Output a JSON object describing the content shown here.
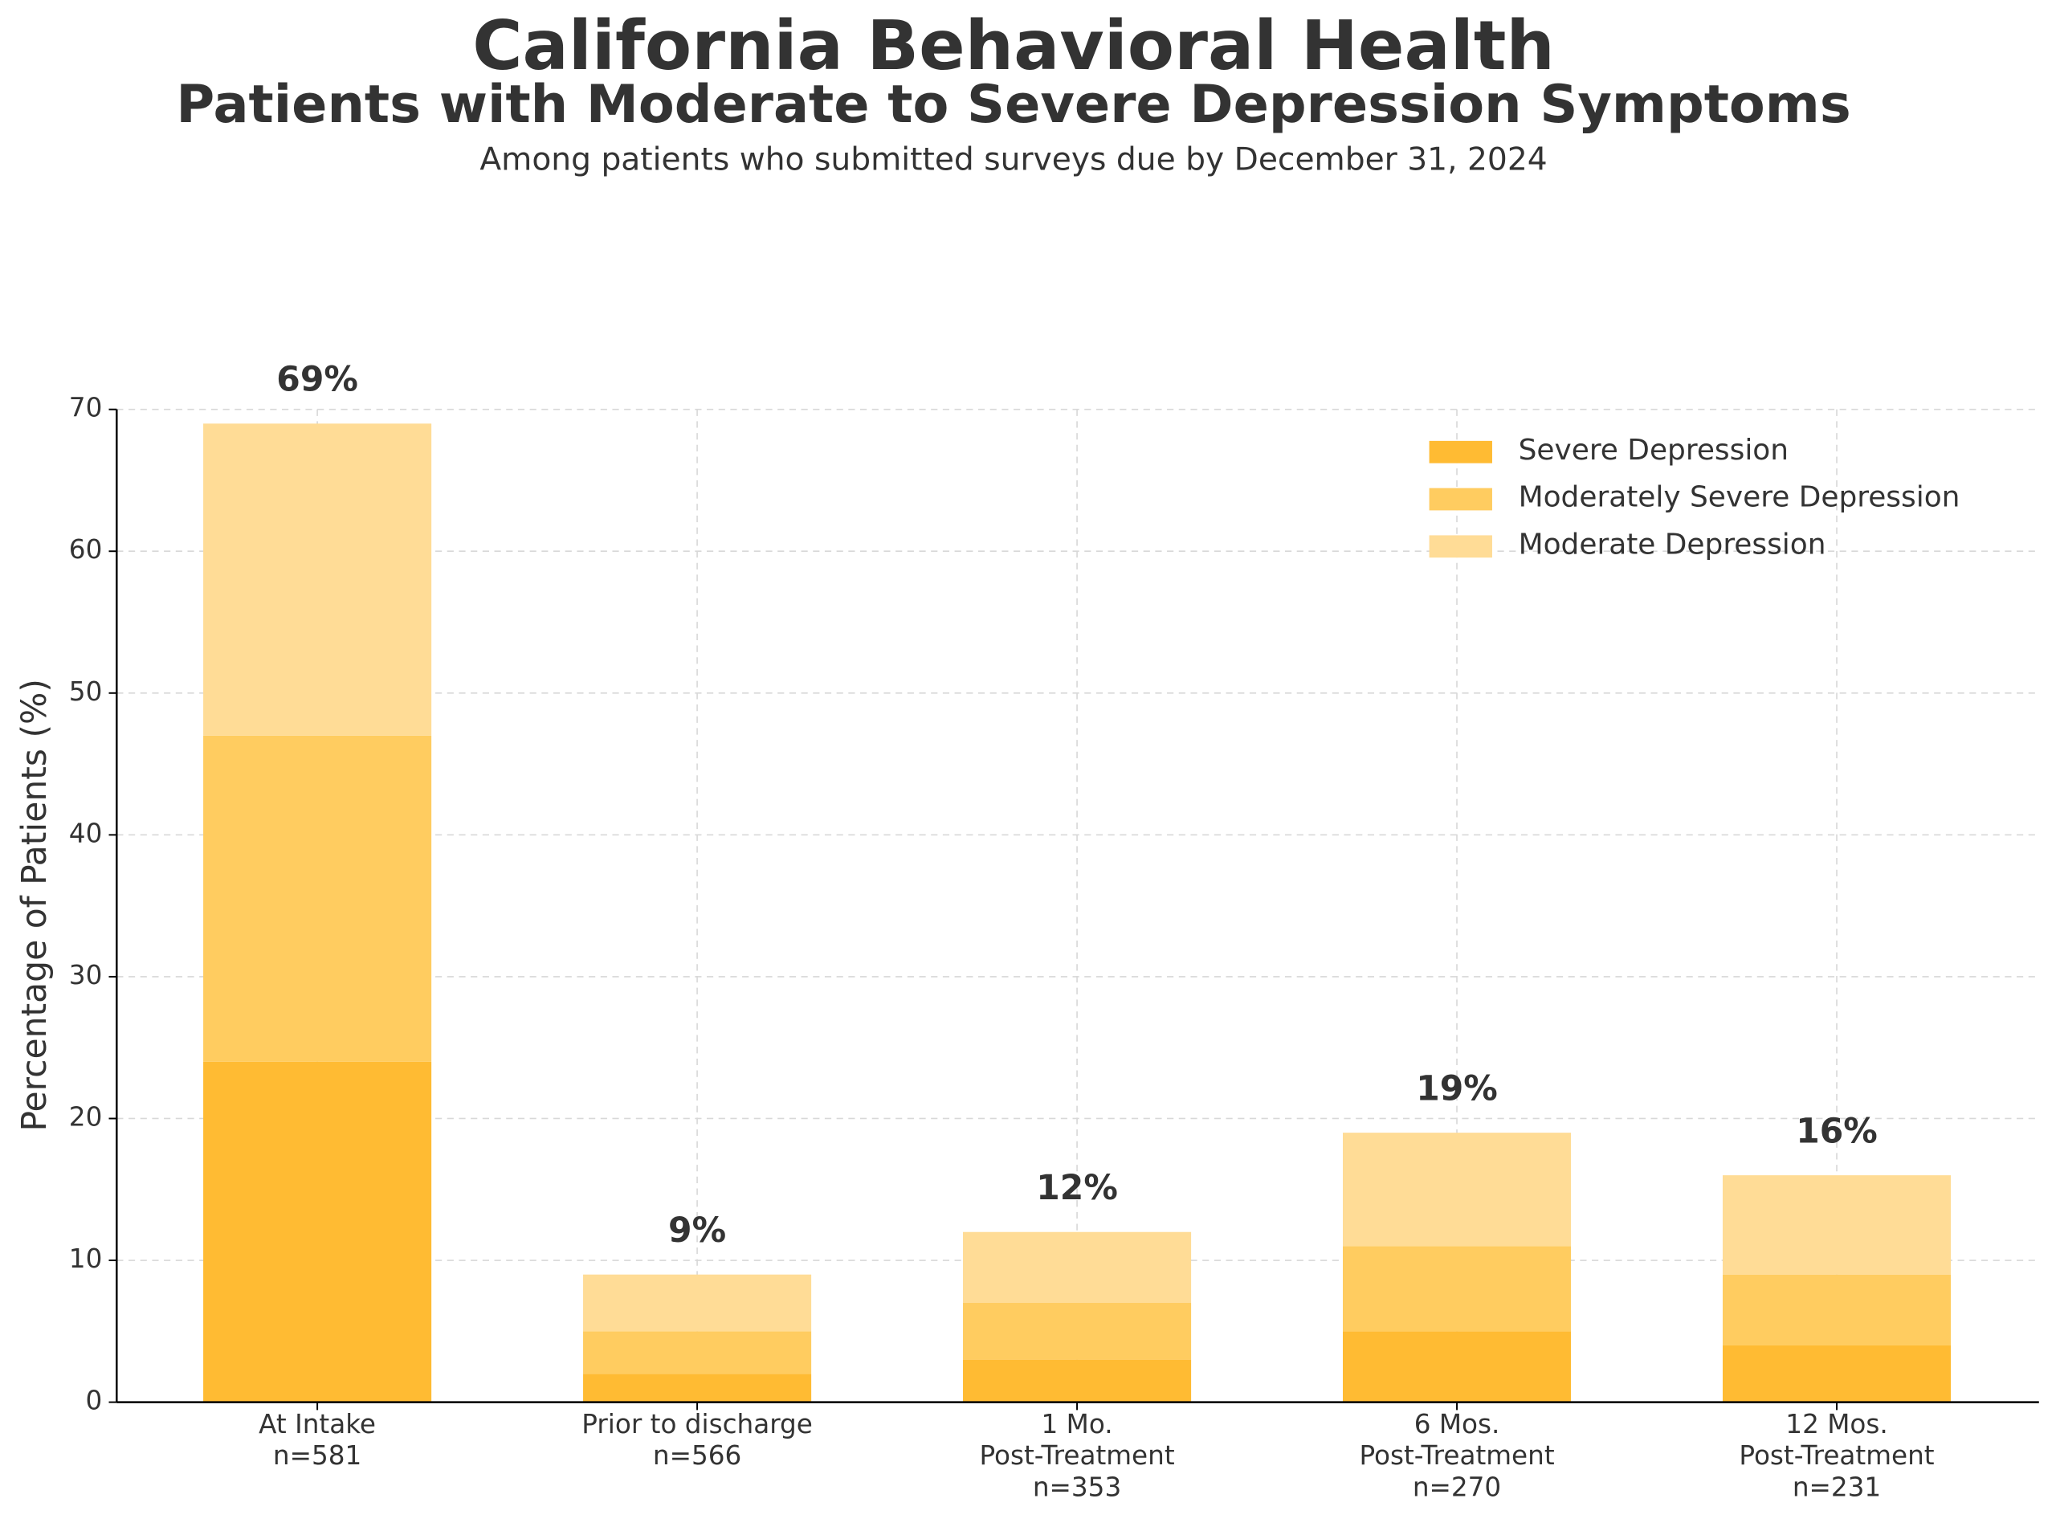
{
  "chart_data": {
    "type": "stacked_bar",
    "title": "California Behavioral Health",
    "subtitle": "Patients with Moderate to Severe Depression Symptoms",
    "caption": "Among patients who submitted surveys due by December 31, 2024",
    "y_label": "Percentage of Patients (%)",
    "categories": [
      [
        "At Intake",
        "n=581"
      ],
      [
        "Prior to discharge",
        "n=566"
      ],
      [
        "1 Mo.",
        "Post-Treatment",
        "n=353"
      ],
      [
        "6 Mos.",
        "Post-Treatment",
        "n=270"
      ],
      [
        "12 Mos.",
        "Post-Treatment",
        "n=231"
      ]
    ],
    "series": [
      {
        "name": "Severe Depression",
        "color": "#ffbb33",
        "values": [
          24,
          2,
          3,
          5,
          4
        ]
      },
      {
        "name": "Moderately Severe Depression",
        "color": "#ffcc60",
        "values": [
          23,
          3,
          4,
          6,
          5
        ]
      },
      {
        "name": "Moderate Depression",
        "color": "#ffdc96",
        "values": [
          22,
          4,
          5,
          8,
          7
        ]
      }
    ],
    "totals": {
      "values": [
        69,
        9,
        12,
        19,
        16
      ],
      "value_labels": [
        "69%",
        "9%",
        "12%",
        "19%",
        "16%"
      ]
    },
    "ylim": [
      0,
      70
    ],
    "yticks": [
      0,
      10,
      20,
      30,
      40,
      50,
      60,
      70
    ],
    "grid": true,
    "legend": "upper right"
  }
}
